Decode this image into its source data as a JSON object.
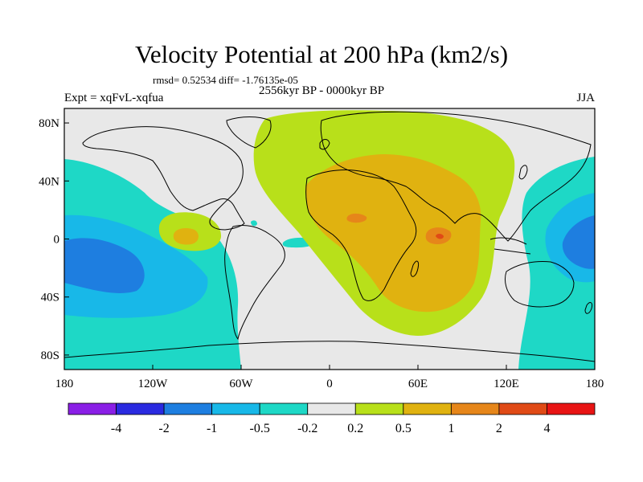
{
  "title": "Velocity Potential at 200 hPa (km2/s)",
  "stats_line": "rmsd= 0.52534 diff= -1.76135e-05",
  "period": "2556kyr BP - 0000kyr BP",
  "experiment": "Expt = xqFvL-xqfua",
  "season": "JJA",
  "map": {
    "projection": "cylindrical-equidistant",
    "lon_range": [
      -180,
      180
    ],
    "lat_range": [
      -90,
      90
    ],
    "x_ticks": [
      {
        "lon": -180,
        "label": "180"
      },
      {
        "lon": -120,
        "label": "120W"
      },
      {
        "lon": -60,
        "label": "60W"
      },
      {
        "lon": 0,
        "label": "0"
      },
      {
        "lon": 60,
        "label": "60E"
      },
      {
        "lon": 120,
        "label": "120E"
      },
      {
        "lon": 180,
        "label": "180"
      }
    ],
    "y_ticks": [
      {
        "lat": 80,
        "label": "80N"
      },
      {
        "lat": 40,
        "label": "40N"
      },
      {
        "lat": 0,
        "label": "0"
      },
      {
        "lat": -40,
        "label": "40S"
      },
      {
        "lat": -80,
        "label": "80S"
      }
    ]
  },
  "colorbar": {
    "colors": [
      "#8a1fe6",
      "#2a2ae0",
      "#1e7ee0",
      "#18b8e8",
      "#1ed8c6",
      "#e8e8e8",
      "#b8e01a",
      "#e0b210",
      "#e6861a",
      "#e04a16",
      "#e81414"
    ],
    "labels": [
      "-4",
      "-2",
      "-1",
      "-0.5",
      "-0.2",
      "0.2",
      "0.5",
      "1",
      "2",
      "4"
    ]
  }
}
